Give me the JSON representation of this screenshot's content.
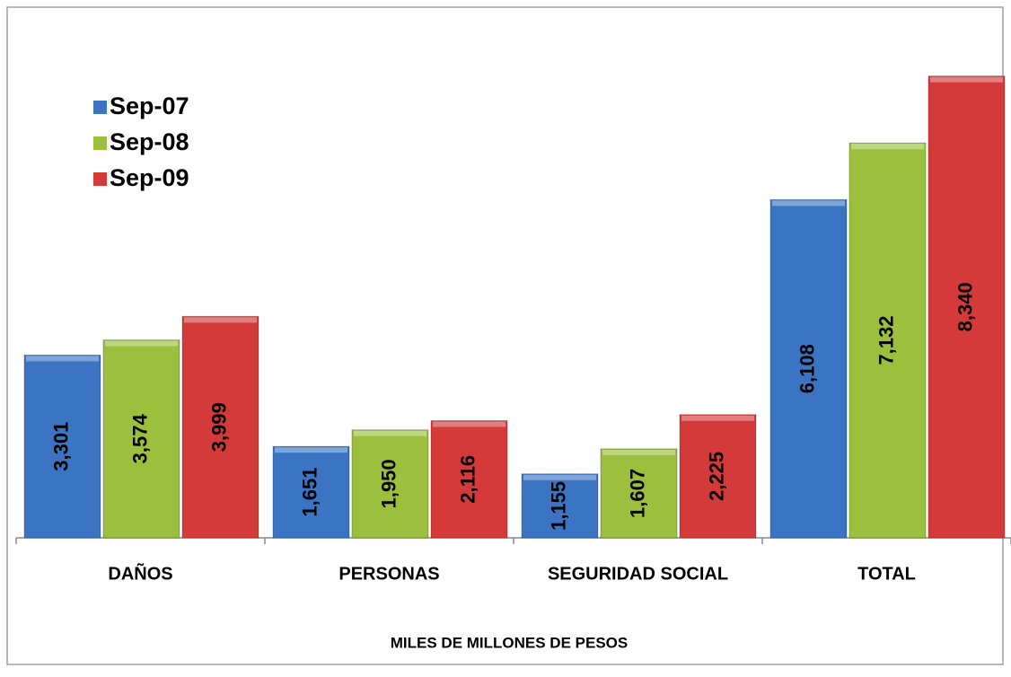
{
  "chart_data": {
    "type": "bar",
    "x_label": "MILES DE MILLONES DE PESOS",
    "categories": [
      "DAÑOS",
      "PERSONAS",
      "SEGURIDAD SOCIAL",
      "TOTAL"
    ],
    "series": [
      {
        "name": "Sep-07",
        "color": "#3b74c3",
        "values": [
          3301,
          1651,
          1155,
          6108
        ],
        "value_labels": [
          "3,301",
          "1,651",
          "1,155",
          "6,108"
        ]
      },
      {
        "name": "Sep-08",
        "color": "#9cc03d",
        "values": [
          3574,
          1950,
          1607,
          7132
        ],
        "value_labels": [
          "3,574",
          "1,950",
          "1,607",
          "7,132"
        ]
      },
      {
        "name": "Sep-09",
        "color": "#d53a3a",
        "values": [
          3999,
          2116,
          2225,
          8340
        ],
        "value_labels": [
          "3,999",
          "2,116",
          "2,225",
          "8,340"
        ]
      }
    ],
    "ylim": [
      0,
      9000
    ],
    "legend": "upper left"
  }
}
